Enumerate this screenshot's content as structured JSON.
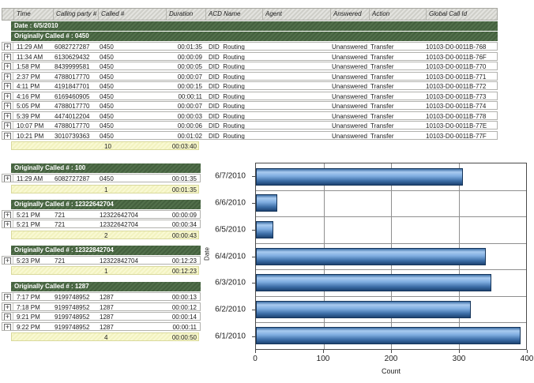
{
  "table": {
    "columns": [
      "",
      "Time",
      "Calling party #",
      "Called #",
      "Duration",
      "ACD Name",
      "Agent",
      "Answered",
      "Action",
      "Global Call Id"
    ],
    "date_label": "Date : 6/5/2010",
    "expand_icon": "+",
    "groups": [
      {
        "label": "Originally Called # : 0450",
        "wide": true,
        "rows": [
          [
            "11:29 AM",
            "6082727287",
            "0450",
            "00:01:35",
            "DID_Routing",
            "",
            "Unanswered",
            "Transfer",
            "10103-D0-0011B-768"
          ],
          [
            "11:34 AM",
            "6130629432",
            "0450",
            "00:00:09",
            "DID_Routing",
            "",
            "Unanswered",
            "Transfer",
            "10103-D0-0011B-76F"
          ],
          [
            "1:58 PM",
            "8439999581",
            "0450",
            "00:00:05",
            "DID_Routing",
            "",
            "Unanswered",
            "Transfer",
            "10103-D0-0011B-770"
          ],
          [
            "2:37 PM",
            "4788017770",
            "0450",
            "00:00:07",
            "DID_Routing",
            "",
            "Unanswered",
            "Transfer",
            "10103-D0-0011B-771"
          ],
          [
            "4:11 PM",
            "4191847701",
            "0450",
            "00:00:15",
            "DID_Routing",
            "",
            "Unanswered",
            "Transfer",
            "10103-D0-0011B-772"
          ],
          [
            "4:16 PM",
            "6169460905",
            "0450",
            "00:00:11",
            "DID_Routing",
            "",
            "Unanswered",
            "Transfer",
            "10103-D0-0011B-773"
          ],
          [
            "5:05 PM",
            "4788017770",
            "0450",
            "00:00:07",
            "DID_Routing",
            "",
            "Unanswered",
            "Transfer",
            "10103-D0-0011B-774"
          ],
          [
            "5:39 PM",
            "4474012204",
            "0450",
            "00:00:03",
            "DID_Routing",
            "",
            "Unanswered",
            "Transfer",
            "10103-D0-0011B-778"
          ],
          [
            "10:07 PM",
            "4788017770",
            "0450",
            "00:00:06",
            "DID_Routing",
            "",
            "Unanswered",
            "Transfer",
            "10103-D0-0011B-77E"
          ],
          [
            "10:21 PM",
            "3010739363",
            "0450",
            "00:01:02",
            "DID_Routing",
            "",
            "Unanswered",
            "Transfer",
            "10103-D0-0011B-77F"
          ]
        ],
        "summary": {
          "count": "10",
          "duration": "00:03:40"
        }
      },
      {
        "label": "Originally Called # : 100",
        "wide": false,
        "rows": [
          [
            "11:29 AM",
            "6082727287",
            "0450",
            "00:01:35"
          ]
        ],
        "summary": {
          "count": "1",
          "duration": "00:01:35"
        }
      },
      {
        "label": "Originally Called # : 12322642704",
        "wide": false,
        "rows": [
          [
            "5:21 PM",
            "721",
            "12322642704",
            "00:00:09"
          ],
          [
            "5:21 PM",
            "721",
            "12322642704",
            "00:00:34"
          ]
        ],
        "summary": {
          "count": "2",
          "duration": "00:00:43"
        }
      },
      {
        "label": "Originally Called # : 12322842704",
        "wide": false,
        "rows": [
          [
            "5:23 PM",
            "721",
            "12322842704",
            "00:12:23"
          ]
        ],
        "summary": {
          "count": "1",
          "duration": "00:12:23"
        }
      },
      {
        "label": "Originally Called # : 1287",
        "wide": false,
        "rows": [
          [
            "7:17 PM",
            "9199748952",
            "1287",
            "00:00:13"
          ],
          [
            "7:18 PM",
            "9199748952",
            "1287",
            "00:00:12"
          ],
          [
            "9:21 PM",
            "9199748952",
            "1287",
            "00:00:14"
          ],
          [
            "9:22 PM",
            "9199748952",
            "1287",
            "00:00:11"
          ]
        ],
        "summary": {
          "count": "4",
          "duration": "00:00:50"
        }
      }
    ]
  },
  "chart_data": {
    "type": "bar",
    "orientation": "horizontal",
    "title": "",
    "categories": [
      "6/7/2010",
      "6/6/2010",
      "6/5/2010",
      "6/4/2010",
      "6/3/2010",
      "6/2/2010",
      "6/1/2010"
    ],
    "values": [
      307,
      32,
      26,
      340,
      348,
      318,
      392
    ],
    "xlabel": "Count",
    "ylabel": "Date",
    "xlim": [
      0,
      400
    ],
    "x_ticks": [
      0,
      100,
      200,
      300,
      400
    ],
    "grid": true,
    "legend": "none"
  },
  "colors": {
    "group_header_bg": "#45603f",
    "summary_bg": "#f6f6c8",
    "header_bg": "#d6d6d0",
    "bar_fill_light": "#a9cbf0",
    "bar_fill_dark": "#1d4371",
    "bar_border": "#16355a"
  }
}
